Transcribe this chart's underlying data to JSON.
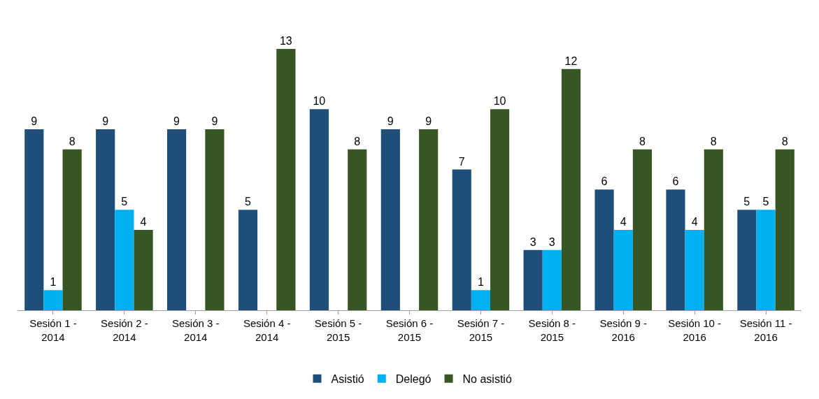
{
  "chart_data": {
    "type": "bar",
    "categories": [
      "Sesión 1 -\n2014",
      "Sesión 2 -\n2014",
      "Sesión 3 -\n2014",
      "Sesión 4 -\n2014",
      "Sesión 5 -\n2015",
      "Sesión 6 -\n2015",
      "Sesión 7 -\n2015",
      "Sesión 8 -\n2015",
      "Sesión 9 -\n2016",
      "Sesión 10 -\n2016",
      "Sesión 11 -\n2016"
    ],
    "series": [
      {
        "name": "Asistió",
        "color": "#1f4e79",
        "values": [
          9,
          9,
          9,
          5,
          10,
          9,
          7,
          3,
          6,
          6,
          5
        ]
      },
      {
        "name": "Delegó",
        "color": "#00b0f0",
        "values": [
          1,
          5,
          null,
          null,
          null,
          null,
          1,
          3,
          4,
          4,
          5
        ]
      },
      {
        "name": "No asistió",
        "color": "#375623",
        "values": [
          8,
          4,
          9,
          13,
          8,
          9,
          10,
          12,
          8,
          8,
          8
        ]
      }
    ],
    "data_labels": true,
    "legend": "bottom"
  }
}
